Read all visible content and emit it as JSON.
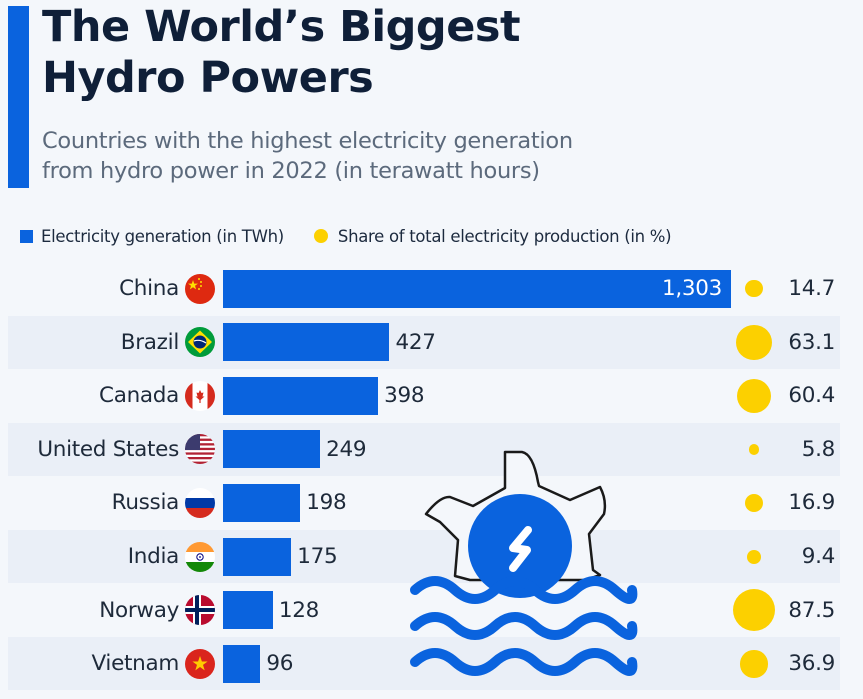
{
  "header": {
    "title_line1": "The World’s Biggest",
    "title_line2": "Hydro Powers",
    "subtitle_line1": "Countries with the highest electricity generation",
    "subtitle_line2": "from hydro power in 2022 (in terawatt hours)"
  },
  "colors": {
    "accent": "#0a63de",
    "bar": "#0a63de",
    "share_dot": "#fcd000",
    "title": "#0f1f38",
    "subtitle": "#5c6a7c",
    "stripe": "#eaeff7",
    "background": "#f4f7fb"
  },
  "icons": {
    "decorative": "hydro-turbine-icon",
    "flags": [
      "china-flag-icon",
      "brazil-flag-icon",
      "canada-flag-icon",
      "usa-flag-icon",
      "russia-flag-icon",
      "india-flag-icon",
      "norway-flag-icon",
      "vietnam-flag-icon"
    ]
  },
  "chart_data": {
    "type": "bar",
    "orientation": "horizontal",
    "title": "The World’s Biggest Hydro Powers",
    "subtitle": "Countries with the highest electricity generation from hydro power in 2022 (in terawatt hours)",
    "xlabel": "",
    "ylabel": "",
    "grid": false,
    "legend_position": "top-left",
    "legend": [
      {
        "label": "Electricity generation (in TWh)",
        "marker": "square"
      },
      {
        "label": "Share of total electricity production (in %)",
        "marker": "circle"
      }
    ],
    "categories": [
      "China",
      "Brazil",
      "Canada",
      "United States",
      "Russia",
      "India",
      "Norway",
      "Vietnam"
    ],
    "series": [
      {
        "name": "Electricity generation (in TWh)",
        "values": [
          1303,
          427,
          398,
          249,
          198,
          175,
          128,
          96
        ],
        "labels": [
          "1,303",
          "427",
          "398",
          "249",
          "198",
          "175",
          "128",
          "96"
        ]
      },
      {
        "name": "Share of total electricity production (in %)",
        "values": [
          14.7,
          63.1,
          60.4,
          5.8,
          16.9,
          9.4,
          87.5,
          36.9
        ],
        "labels": [
          "14.7",
          "63.1",
          "60.4",
          "5.8",
          "16.9",
          "9.4",
          "87.5",
          "36.9"
        ]
      }
    ],
    "xlim": [
      0,
      1303
    ]
  }
}
